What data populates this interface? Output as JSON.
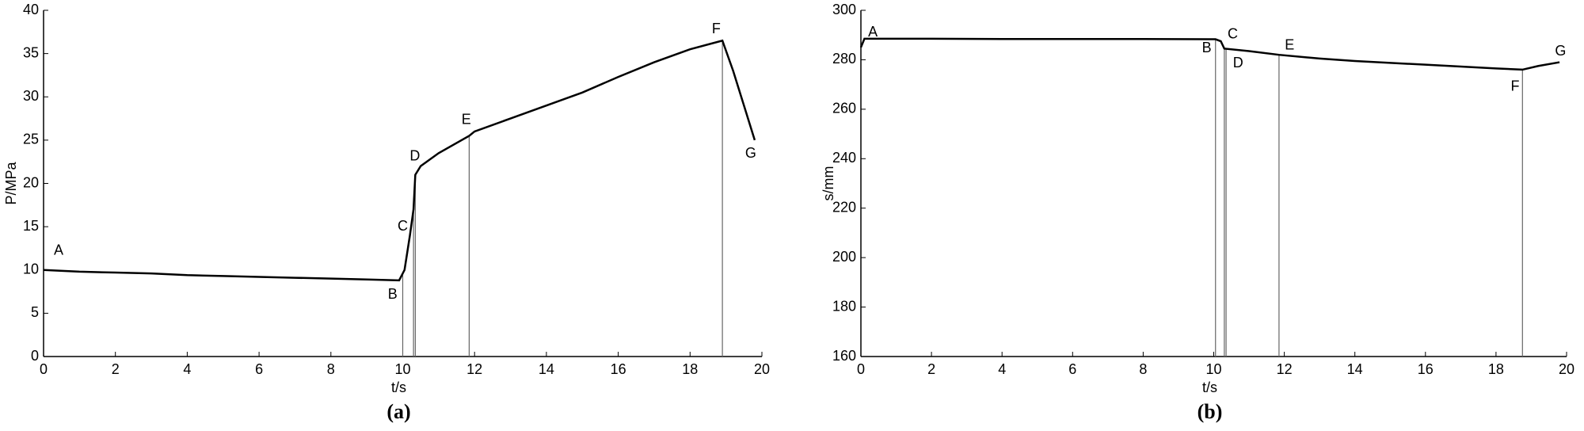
{
  "chart_data": [
    {
      "type": "line",
      "caption": "(a)",
      "xlabel": "t/s",
      "ylabel": "P/MPa",
      "color": "#000000",
      "xlim": [
        0,
        20
      ],
      "xticks": [
        0,
        2,
        4,
        6,
        8,
        10,
        12,
        14,
        16,
        18,
        20
      ],
      "ylim": [
        0,
        40
      ],
      "yticks": [
        0,
        5,
        10,
        15,
        20,
        25,
        30,
        35,
        40
      ],
      "x": [
        0,
        1,
        2,
        3,
        4,
        5,
        6,
        7,
        8,
        9,
        9.9,
        10.05,
        10.2,
        10.3,
        10.35,
        10.5,
        11,
        11.85,
        12,
        13,
        14,
        15,
        16,
        17,
        18,
        18.9,
        19.2,
        19.5,
        19.8
      ],
      "values": [
        10,
        9.8,
        9.7,
        9.6,
        9.4,
        9.3,
        9.2,
        9.1,
        9,
        8.9,
        8.8,
        10,
        14,
        17,
        21,
        22,
        23.5,
        25.5,
        26,
        27.5,
        29,
        30.5,
        32.3,
        34,
        35.5,
        36.5,
        33,
        29,
        25
      ],
      "vlines": [
        10,
        10.3,
        10.35,
        11.85,
        18.9
      ],
      "annotations": [
        {
          "text": "A",
          "x": 0.42,
          "y": 12.2
        },
        {
          "text": "B",
          "x": 9.72,
          "y": 7.1
        },
        {
          "text": "C",
          "x": 10.0,
          "y": 15
        },
        {
          "text": "D",
          "x": 10.34,
          "y": 23.1
        },
        {
          "text": "E",
          "x": 11.77,
          "y": 27.3
        },
        {
          "text": "F",
          "x": 18.73,
          "y": 37.8
        },
        {
          "text": "G",
          "x": 19.69,
          "y": 23.4
        }
      ]
    },
    {
      "type": "line",
      "caption": "(b)",
      "xlabel": "t/s",
      "ylabel": "s/mm",
      "color": "#000000",
      "xlim": [
        0,
        20
      ],
      "xticks": [
        0,
        2,
        4,
        6,
        8,
        10,
        12,
        14,
        16,
        18,
        20
      ],
      "ylim": [
        160,
        300
      ],
      "yticks": [
        160,
        180,
        200,
        220,
        240,
        260,
        280,
        300
      ],
      "x": [
        0,
        0.1,
        2,
        4,
        6,
        8,
        10.05,
        10.2,
        10.3,
        11,
        11.85,
        13,
        14,
        16,
        18,
        18.75,
        19.2,
        19.8
      ],
      "values": [
        285,
        288.5,
        288.5,
        288.4,
        288.4,
        288.4,
        288.3,
        287.5,
        284.5,
        283.5,
        282,
        280.5,
        279.5,
        278,
        276.5,
        276,
        277.5,
        279
      ],
      "vlines": [
        10.05,
        10.3,
        10.35,
        11.85,
        18.75
      ],
      "annotations": [
        {
          "text": "A",
          "x": 0.34,
          "y": 291
        },
        {
          "text": "B",
          "x": 9.8,
          "y": 284.5
        },
        {
          "text": "C",
          "x": 10.54,
          "y": 290.2
        },
        {
          "text": "D",
          "x": 10.69,
          "y": 278.4
        },
        {
          "text": "E",
          "x": 12.15,
          "y": 285.7
        },
        {
          "text": "F",
          "x": 18.54,
          "y": 269
        },
        {
          "text": "G",
          "x": 19.83,
          "y": 283.3
        }
      ]
    }
  ]
}
